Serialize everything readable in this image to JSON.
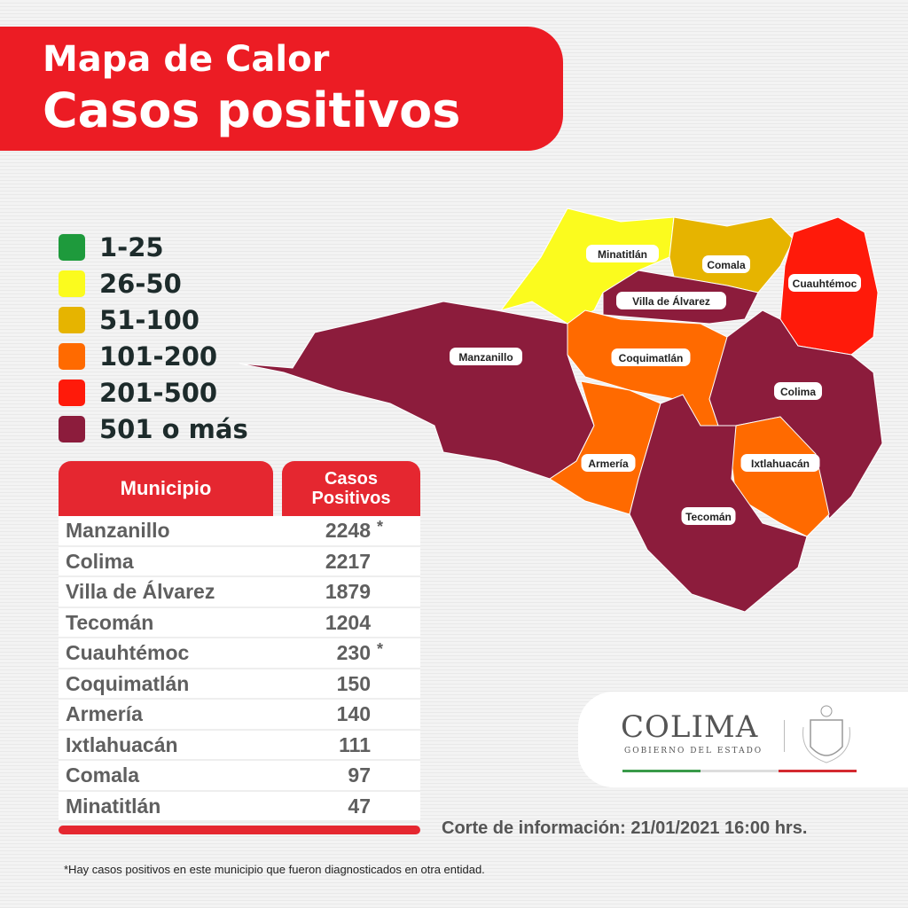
{
  "header": {
    "line1": "Mapa de Calor",
    "line2": "Casos positivos"
  },
  "legend": [
    {
      "label": "1-25",
      "color": "#1e9a3c"
    },
    {
      "label": "26-50",
      "color": "#fbfb1e"
    },
    {
      "label": "51-100",
      "color": "#e6b400"
    },
    {
      "label": "101-200",
      "color": "#ff6a00"
    },
    {
      "label": "201-500",
      "color": "#ff1a0a"
    },
    {
      "label": "501 o más",
      "color": "#8c1c3c"
    }
  ],
  "table": {
    "col1": "Municipio",
    "col2": "Casos Positivos",
    "rows": [
      {
        "municipio": "Manzanillo",
        "casos": "2248",
        "note": "*"
      },
      {
        "municipio": "Colima",
        "casos": "2217",
        "note": ""
      },
      {
        "municipio": "Villa de Álvarez",
        "casos": "1879",
        "note": ""
      },
      {
        "municipio": "Tecomán",
        "casos": "1204",
        "note": ""
      },
      {
        "municipio": "Cuauhtémoc",
        "casos": "230",
        "note": "*"
      },
      {
        "municipio": "Coquimatlán",
        "casos": "150",
        "note": ""
      },
      {
        "municipio": "Armería",
        "casos": "140",
        "note": ""
      },
      {
        "municipio": "Ixtlahuacán",
        "casos": "111",
        "note": ""
      },
      {
        "municipio": "Comala",
        "casos": "97",
        "note": ""
      },
      {
        "municipio": "Minatitlán",
        "casos": "47",
        "note": ""
      }
    ]
  },
  "map": {
    "regions": [
      {
        "name": "Manzanillo",
        "color": "#8c1c3c"
      },
      {
        "name": "Minatitlán",
        "color": "#fbfb1e"
      },
      {
        "name": "Comala",
        "color": "#e6b400"
      },
      {
        "name": "Cuauhtémoc",
        "color": "#ff1a0a"
      },
      {
        "name": "Villa de Álvarez",
        "color": "#8c1c3c"
      },
      {
        "name": "Coquimatlán",
        "color": "#ff6a00"
      },
      {
        "name": "Armería",
        "color": "#ff6a00"
      },
      {
        "name": "Colima",
        "color": "#8c1c3c"
      },
      {
        "name": "Ixtlahuacán",
        "color": "#ff6a00"
      },
      {
        "name": "Tecomán",
        "color": "#8c1c3c"
      }
    ]
  },
  "corte": "Corte de información: 21/01/2021 16:00 hrs.",
  "footnote": "*Hay casos positivos en este municipio que fueron diagnosticados en otra entidad.",
  "logo": {
    "title": "COLIMA",
    "subtitle": "GOBIERNO DEL ESTADO"
  }
}
